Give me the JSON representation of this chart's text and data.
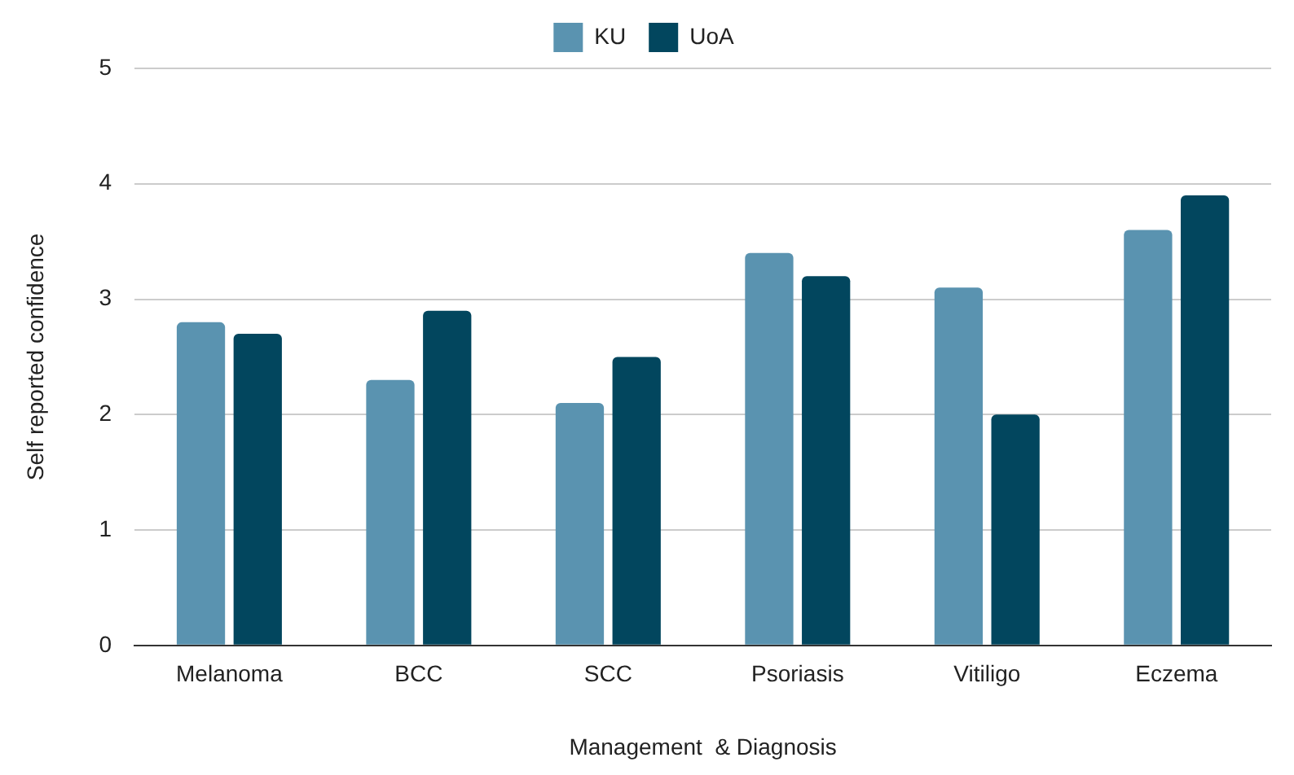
{
  "chart_data": {
    "type": "bar",
    "xlabel": "Management  & Diagnosis",
    "ylabel": "Self reported confidence",
    "categories": [
      "Melanoma",
      "BCC",
      "SCC",
      "Psoriasis",
      "Vitiligo",
      "Eczema"
    ],
    "series": [
      {
        "name": "KU",
        "color": "#5a93b0",
        "values": [
          2.8,
          2.3,
          2.1,
          3.4,
          3.1,
          3.6
        ]
      },
      {
        "name": "UoA",
        "color": "#02465e",
        "values": [
          2.7,
          2.9,
          2.5,
          3.2,
          2.0,
          3.9
        ]
      }
    ],
    "ylim": [
      0,
      5
    ],
    "yticks": [
      0,
      1,
      2,
      3,
      4,
      5
    ],
    "grid": "y",
    "legend": "top"
  }
}
